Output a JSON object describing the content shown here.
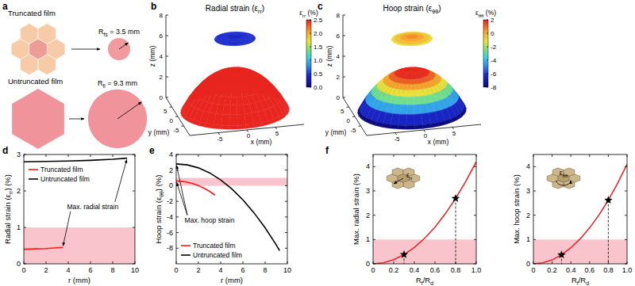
{
  "diagram": {
    "panel": "a",
    "items": [
      {
        "label": "Truncated film",
        "radius_label": [
          "R",
          {
            "sub": "fs"
          },
          " = 3.5 mm"
        ],
        "radius": 3.5,
        "shape": "flower",
        "colors": [
          "#ee9c96",
          "#f8cba8"
        ],
        "color": "#f19aa0"
      },
      {
        "label": "Untruncated film",
        "radius_label": [
          "R",
          {
            "sub": "fl"
          },
          " = 9.3 mm"
        ],
        "radius": 9.3,
        "shape": "hexagon",
        "colors": [
          "#f0939b"
        ],
        "color": "#f0939b"
      }
    ]
  },
  "chart_data": [
    {
      "type": "surface3d",
      "panel": "b",
      "title": [
        "Radial strain (ε",
        {
          "sub": "rr"
        },
        ")"
      ],
      "xlabel": "x (mm)",
      "ylabel": "y (mm)",
      "zlabel": "z (mm)",
      "xlim": [
        -10,
        10
      ],
      "ylim": [
        -10,
        10
      ],
      "zlim": [
        0,
        8
      ],
      "xticks": [
        -5,
        0,
        5
      ],
      "yticks": [
        -5,
        0,
        5
      ],
      "zticks": [
        0,
        2,
        4,
        6,
        8
      ],
      "colorbar": {
        "title": [
          "ε",
          {
            "sub": "rr"
          },
          " (%)"
        ],
        "range": [
          0,
          2.5
        ],
        "ticks": [
          {
            "value": 0,
            "label": "0.0"
          },
          0.5,
          {
            "value": 1,
            "label": "1.0"
          },
          1.5,
          {
            "value": 2,
            "label": "2.0"
          },
          2.5
        ]
      },
      "surfaces": [
        {
          "r": [
            0,
            1,
            2,
            3,
            4,
            5,
            6,
            7,
            8,
            9,
            9.3
          ],
          "z": [
            4.0,
            3.96,
            3.85,
            3.65,
            3.36,
            2.99,
            2.51,
            1.92,
            1.19,
            0.3,
            0
          ],
          "strain": [
            2.8,
            2.8,
            2.81,
            2.81,
            2.82,
            2.83,
            2.84,
            2.86,
            2.87,
            2.89,
            2.9
          ]
        },
        {
          "r": [
            0,
            1,
            2,
            3,
            3.5
          ],
          "z": [
            7.2,
            7.18,
            7.12,
            7.03,
            7.0
          ],
          "strain": [
            0.4,
            0.41,
            0.42,
            0.44,
            0.45
          ]
        }
      ]
    },
    {
      "type": "surface3d",
      "panel": "c",
      "title": [
        "Hoop strain (ε",
        {
          "sub": "θθ"
        },
        ")"
      ],
      "xlabel": "x (mm)",
      "ylabel": "y (mm)",
      "zlabel": "z (mm)",
      "xlim": [
        -10,
        10
      ],
      "ylim": [
        -10,
        10
      ],
      "zlim": [
        0,
        8
      ],
      "xticks": [
        -5,
        0,
        5
      ],
      "yticks": [
        -5,
        0,
        5
      ],
      "zticks": [
        0,
        2,
        4,
        6,
        8
      ],
      "colorbar": {
        "title": [
          "ε",
          {
            "sub": "θθ"
          },
          " (%)"
        ],
        "range": [
          -8,
          2
        ],
        "ticks": [
          -8,
          -6,
          -4,
          -2,
          0,
          2
        ]
      },
      "surfaces": [
        {
          "r": [
            0,
            1,
            2,
            3,
            4,
            5,
            6,
            7,
            8,
            9,
            9.3
          ],
          "z": [
            4.0,
            3.96,
            3.85,
            3.65,
            3.36,
            2.99,
            2.51,
            1.92,
            1.19,
            0.3,
            0
          ],
          "strain": [
            2.8,
            2.67,
            2.29,
            1.65,
            0.75,
            -0.4,
            -1.81,
            -3.47,
            -5.39,
            -7.57,
            -8.3
          ]
        },
        {
          "r": [
            0,
            1,
            2,
            3,
            3.5
          ],
          "z": [
            7.2,
            7.18,
            7.12,
            7.03,
            7.0
          ],
          "strain": [
            0.6,
            0.45,
            0.01,
            -0.72,
            -1.2
          ]
        }
      ]
    },
    {
      "type": "line",
      "panel": "d",
      "xlabel": "r (mm)",
      "ylabel": [
        "Radial strain (ε",
        {
          "sub": "rr"
        },
        ") (%)"
      ],
      "xlim": [
        0,
        10
      ],
      "ylim": [
        0,
        3
      ],
      "xticks": [
        0,
        2,
        4,
        6,
        8,
        10
      ],
      "yticks": [
        0,
        1,
        2,
        3
      ],
      "legend": "upper left",
      "bands": [
        {
          "from": 0,
          "to": 1,
          "color": "#f9c4cb"
        }
      ],
      "annotations": [
        "Max. radial strain"
      ],
      "series": [
        {
          "name": "Truncated film",
          "color": "#ff1a1a",
          "x": [
            0,
            1,
            2,
            3,
            3.5
          ],
          "values": [
            0.4,
            0.41,
            0.42,
            0.44,
            0.45
          ]
        },
        {
          "name": "Untruncated film",
          "color": "#000000",
          "x": [
            0,
            2,
            4,
            6,
            8,
            9.3
          ],
          "values": [
            2.8,
            2.81,
            2.82,
            2.84,
            2.87,
            2.9
          ]
        }
      ]
    },
    {
      "type": "line",
      "panel": "e",
      "xlabel": "r (mm)",
      "ylabel": [
        "Hoop strain (ε",
        {
          "sub": "θθ"
        },
        ") (%)"
      ],
      "xlim": [
        0,
        10
      ],
      "ylim": [
        -10,
        4
      ],
      "xticks": [
        0,
        2,
        4,
        6,
        8,
        10
      ],
      "yticks": [
        -8,
        -6,
        -4,
        -2,
        0,
        2,
        4
      ],
      "legend": "lower left",
      "bands": [
        {
          "from": 0,
          "to": 1,
          "color": "#f9c4cb"
        }
      ],
      "annotations": [
        "Max. hoop strain"
      ],
      "series": [
        {
          "name": "Truncated film",
          "color": "#ff1a1a",
          "x": [
            0,
            0.5,
            1,
            1.5,
            2,
            2.5,
            3,
            3.5
          ],
          "values": [
            0.6,
            0.56,
            0.45,
            0.27,
            0.01,
            -0.32,
            -0.72,
            -1.2
          ]
        },
        {
          "name": "Untruncated film",
          "color": "#000000",
          "x": [
            0,
            1,
            2,
            3,
            4,
            5,
            6,
            7,
            8,
            9,
            9.3
          ],
          "values": [
            2.8,
            2.67,
            2.29,
            1.65,
            0.75,
            -0.4,
            -1.81,
            -3.47,
            -5.39,
            -7.57,
            -8.3
          ]
        }
      ]
    },
    {
      "type": "line",
      "panel": "f",
      "xlabel": [
        "R",
        {
          "sub": "f"
        },
        "/R",
        {
          "sub": "d"
        }
      ],
      "ylabel": "Max. radial strain (%)",
      "xlim": [
        0,
        1
      ],
      "ylim": [
        0,
        4.5
      ],
      "xticks": [
        0,
        0.2,
        0.4,
        0.6,
        0.8,
        {
          "value": 1,
          "label": "1.0"
        }
      ],
      "yticks": [
        0,
        1,
        2,
        3,
        4
      ],
      "bands": [
        {
          "from": 0,
          "to": 1,
          "color": "#f9c4cb"
        }
      ],
      "inset_label": [
        "ε",
        {
          "sub": "rr"
        }
      ],
      "series": [
        {
          "color": "#e8262b",
          "x": [
            0,
            0.1,
            0.2,
            0.3,
            0.4,
            0.5,
            0.6,
            0.7,
            0.8,
            0.9,
            1
          ],
          "values": [
            0,
            0.04,
            0.17,
            0.38,
            0.67,
            1.05,
            1.51,
            2.06,
            2.69,
            3.4,
            4.2
          ]
        },
        {
          "type": "scatter",
          "marker": "star",
          "line_style": "dashed",
          "color": "#000000",
          "x": [
            0.3,
            0.8
          ],
          "values": [
            0.38,
            2.69
          ]
        }
      ]
    },
    {
      "type": "line",
      "xlabel": [
        "R",
        {
          "sub": "f"
        },
        "/R",
        {
          "sub": "d"
        }
      ],
      "ylabel": "Max. hoop strain (%)",
      "xlim": [
        0,
        1
      ],
      "ylim": [
        0,
        4.5
      ],
      "xticks": [
        0,
        0.2,
        0.4,
        0.6,
        0.8,
        {
          "value": 1,
          "label": "1.0"
        }
      ],
      "yticks": [
        0,
        1,
        2,
        3,
        4
      ],
      "bands": [
        {
          "from": 0,
          "to": 1,
          "color": "#f9c4cb"
        }
      ],
      "inset_label": [
        "ε",
        {
          "sub": "θθ"
        }
      ],
      "series": [
        {
          "color": "#e8262b",
          "x": [
            0,
            0.1,
            0.2,
            0.3,
            0.4,
            0.5,
            0.6,
            0.7,
            0.8,
            0.9,
            1
          ],
          "values": [
            0,
            0.04,
            0.16,
            0.37,
            0.66,
            1.03,
            1.48,
            2.01,
            2.62,
            3.32,
            4.1
          ]
        },
        {
          "type": "scatter",
          "marker": "star",
          "line_style": "dashed",
          "color": "#000000",
          "x": [
            0.3,
            0.8
          ],
          "values": [
            0.37,
            2.62
          ]
        }
      ]
    }
  ]
}
